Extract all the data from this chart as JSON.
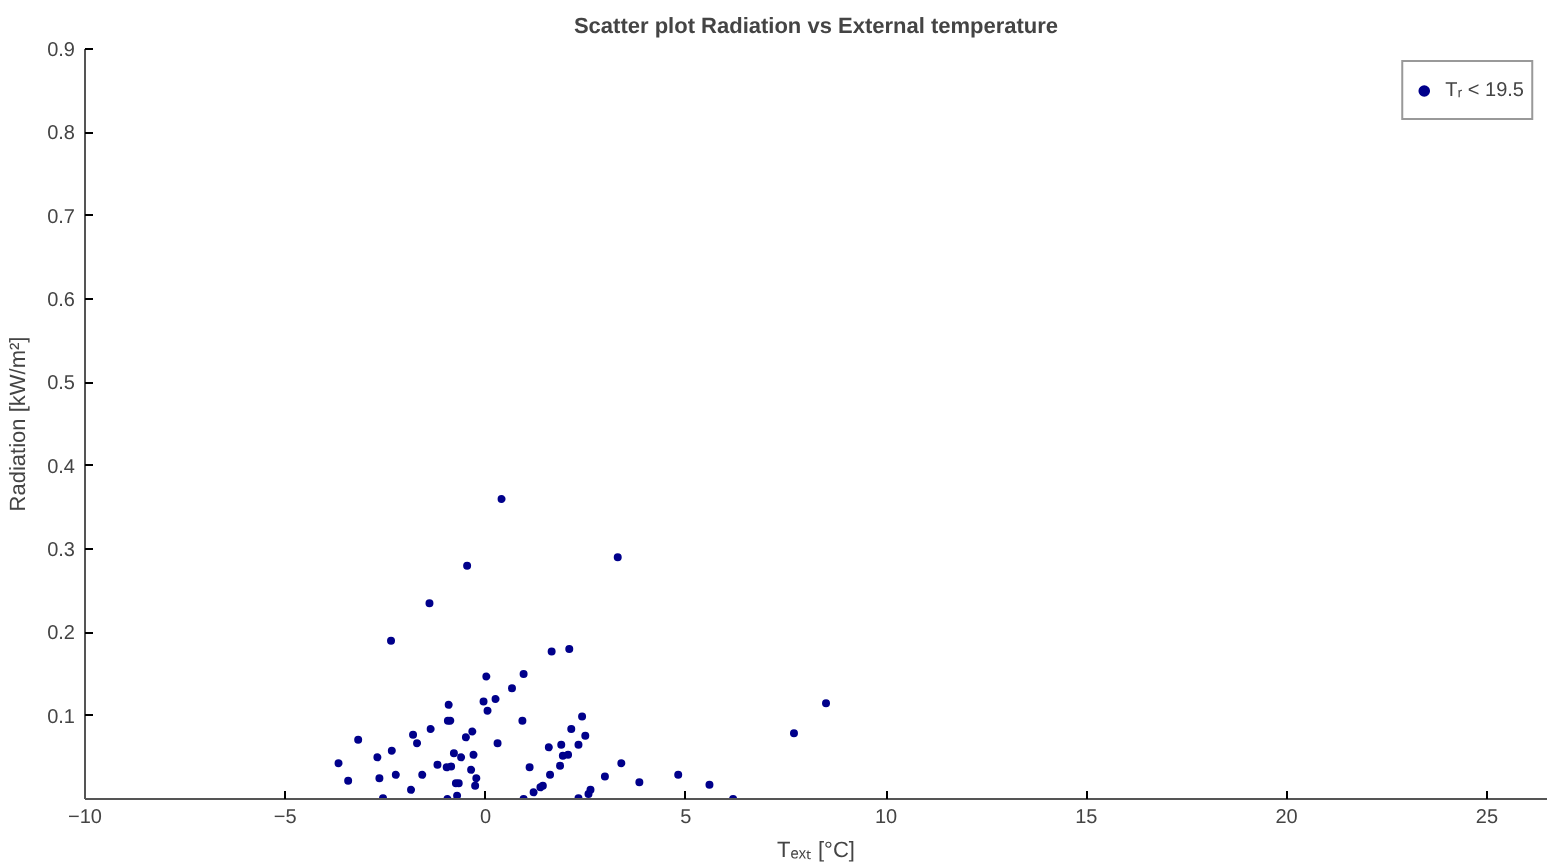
{
  "chart_data": {
    "type": "scatter",
    "title": "Scatter plot Radiation vs External temperature",
    "xlabel": "Tₑₓₜ [°C]",
    "ylabel": "Radiation [kW/m²]",
    "xlim": [
      -10,
      26.5
    ],
    "xticks": [
      -10,
      -5,
      0,
      5,
      10,
      15,
      20,
      25
    ],
    "ylim": [
      0,
      0.9
    ],
    "yticks": [
      0.1,
      0.2,
      0.3,
      0.4,
      0.5,
      0.6,
      0.7,
      0.8,
      0.9
    ],
    "grid": false,
    "legend": "top right",
    "marker": "circle",
    "series": [
      {
        "name": "Tᵣ < 19.5",
        "color": "#00008b",
        "x": [
          0.4,
          3.3,
          -0.46,
          -1.4,
          -2.36,
          1.65,
          2.09,
          0.02,
          0.95,
          0.66,
          -0.05,
          0.25,
          -0.92,
          0.05,
          -0.94,
          -0.88,
          0.92,
          2.41,
          -3.18,
          -1.81,
          -1.37,
          -1.71,
          -0.33,
          -0.49,
          0.3,
          2.14,
          2.49,
          2.32,
          1.58,
          1.89,
          -2.34,
          -2.7,
          -0.79,
          -0.61,
          -0.3,
          1.93,
          2.06,
          -3.67,
          -1.2,
          -0.97,
          -0.86,
          -0.36,
          1.1,
          1.86,
          1.61,
          3.39,
          2.98,
          -3.43,
          -2.65,
          -2.24,
          -1.58,
          -0.23,
          -0.74,
          -0.67,
          -0.26,
          1.43,
          1.37,
          3.84,
          -1.86,
          1.2,
          2.62,
          2.57,
          -2.56,
          -0.71,
          -0.95,
          0.95,
          2.32,
          4.81,
          5.59,
          6.18,
          7.7,
          8.5
        ],
        "values": [
          0.36,
          0.29,
          0.28,
          0.235,
          0.19,
          0.177,
          0.18,
          0.147,
          0.15,
          0.133,
          0.117,
          0.12,
          0.113,
          0.106,
          0.094,
          0.094,
          0.094,
          0.099,
          0.071,
          0.077,
          0.084,
          0.067,
          0.081,
          0.074,
          0.067,
          0.084,
          0.076,
          0.065,
          0.062,
          0.065,
          0.058,
          0.05,
          0.055,
          0.05,
          0.053,
          0.052,
          0.053,
          0.043,
          0.041,
          0.038,
          0.039,
          0.035,
          0.038,
          0.04,
          0.029,
          0.043,
          0.027,
          0.022,
          0.025,
          0.029,
          0.029,
          0.025,
          0.019,
          0.019,
          0.016,
          0.016,
          0.014,
          0.02,
          0.011,
          0.008,
          0.011,
          0.006,
          0.001,
          0.004,
          0.0,
          0.0,
          0.001,
          0.029,
          0.017,
          0.0,
          0.079,
          0.115
        ]
      }
    ]
  }
}
